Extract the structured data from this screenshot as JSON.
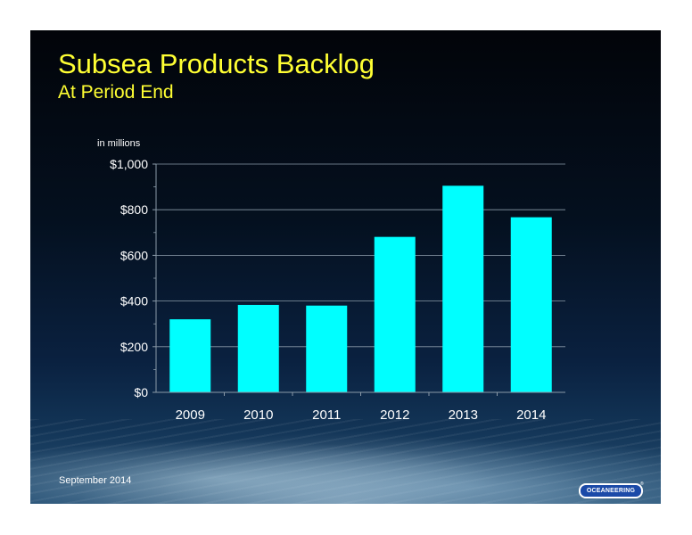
{
  "title": "Subsea Products Backlog",
  "subtitle": "At Period End",
  "footer_date": "September 2014",
  "logo_text": "OCEANEERING",
  "colors": {
    "title": "#ffff33",
    "bar": "#00ffff",
    "text": "#ffffff",
    "gridline": "#8a9aa8"
  },
  "chart_data": {
    "type": "bar",
    "unit_label": "in millions",
    "categories": [
      "2009",
      "2010",
      "2011",
      "2012",
      "2013",
      "2014"
    ],
    "values": [
      320,
      383,
      380,
      681,
      905,
      767
    ],
    "ylim": [
      0,
      1000
    ],
    "yticks": [
      0,
      200,
      400,
      600,
      800,
      1000
    ],
    "ytick_labels": [
      "$0",
      "$200",
      "$400",
      "$600",
      "$800",
      "$1,000"
    ],
    "grid": true
  }
}
